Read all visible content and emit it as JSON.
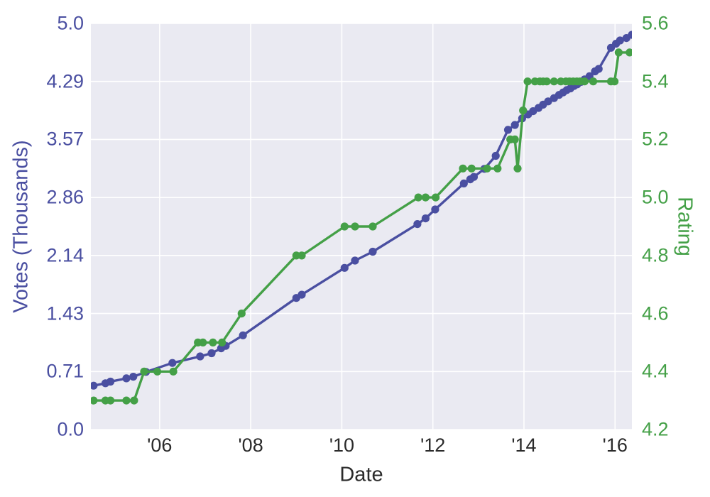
{
  "figure": {
    "left_axis": {
      "label": "Votes (Thousands)",
      "color": "#4a4fa1",
      "ticks": [
        "5.0",
        "4.29",
        "3.57",
        "2.86",
        "2.14",
        "1.43",
        "0.71",
        "0.0"
      ]
    },
    "right_axis": {
      "label": "Rating",
      "color": "#44a047",
      "ticks": [
        "5.6",
        "5.4",
        "5.2",
        "5.0",
        "4.8",
        "4.6",
        "4.4",
        "4.2"
      ]
    },
    "x_axis": {
      "label": "Date",
      "color": "#2b2b2b",
      "ticks": [
        "'06",
        "'08",
        "'10",
        "'12",
        "'14",
        "'16"
      ],
      "tick_years": [
        2006,
        2008,
        2010,
        2012,
        2014,
        2016
      ]
    }
  },
  "chart_data": {
    "type": "line",
    "title": "",
    "xlabel": "Date",
    "x_range": [
      2004.49,
      2016.37
    ],
    "grid": true,
    "legend": "none",
    "plot_background": "#eaeaf2",
    "gridline_color": "#ffffff",
    "marker": "circle",
    "series": [
      {
        "name": "Votes (Thousands)",
        "axis": "left",
        "color": "#4a4fa1",
        "ylim": [
          0.0,
          5.0
        ],
        "yticks": [
          0.0,
          0.71,
          1.43,
          2.14,
          2.86,
          3.57,
          4.29,
          5.0
        ],
        "points": [
          [
            2004.55,
            0.54
          ],
          [
            2004.81,
            0.57
          ],
          [
            2004.92,
            0.59
          ],
          [
            2005.27,
            0.63
          ],
          [
            2005.42,
            0.65
          ],
          [
            2005.7,
            0.71
          ],
          [
            2006.28,
            0.82
          ],
          [
            2006.89,
            0.9
          ],
          [
            2007.14,
            0.94
          ],
          [
            2007.35,
            1.0
          ],
          [
            2007.45,
            1.03
          ],
          [
            2007.83,
            1.16
          ],
          [
            2009.0,
            1.62
          ],
          [
            2009.12,
            1.66
          ],
          [
            2010.06,
            1.99
          ],
          [
            2010.29,
            2.08
          ],
          [
            2010.68,
            2.19
          ],
          [
            2011.66,
            2.53
          ],
          [
            2011.84,
            2.6
          ],
          [
            2012.05,
            2.71
          ],
          [
            2012.68,
            3.03
          ],
          [
            2012.82,
            3.08
          ],
          [
            2012.9,
            3.11
          ],
          [
            2013.13,
            3.21
          ],
          [
            2013.38,
            3.37
          ],
          [
            2013.65,
            3.69
          ],
          [
            2013.8,
            3.75
          ],
          [
            2013.96,
            3.83
          ],
          [
            2014.09,
            3.88
          ],
          [
            2014.2,
            3.92
          ],
          [
            2014.32,
            3.96
          ],
          [
            2014.42,
            4.0
          ],
          [
            2014.53,
            4.04
          ],
          [
            2014.66,
            4.08
          ],
          [
            2014.77,
            4.12
          ],
          [
            2014.86,
            4.15
          ],
          [
            2014.94,
            4.18
          ],
          [
            2015.02,
            4.2
          ],
          [
            2015.1,
            4.23
          ],
          [
            2015.17,
            4.25
          ],
          [
            2015.25,
            4.28
          ],
          [
            2015.33,
            4.31
          ],
          [
            2015.44,
            4.35
          ],
          [
            2015.56,
            4.41
          ],
          [
            2015.64,
            4.44
          ],
          [
            2015.91,
            4.7
          ],
          [
            2016.02,
            4.75
          ],
          [
            2016.11,
            4.79
          ],
          [
            2016.25,
            4.82
          ],
          [
            2016.37,
            4.86
          ]
        ]
      },
      {
        "name": "Rating",
        "axis": "right",
        "color": "#44a047",
        "ylim": [
          4.2,
          5.6
        ],
        "yticks": [
          4.2,
          4.4,
          4.6,
          4.8,
          5.0,
          5.2,
          5.4,
          5.6
        ],
        "points": [
          [
            2004.55,
            4.3
          ],
          [
            2004.81,
            4.3
          ],
          [
            2004.92,
            4.3
          ],
          [
            2005.27,
            4.3
          ],
          [
            2005.44,
            4.3
          ],
          [
            2005.66,
            4.4
          ],
          [
            2005.95,
            4.4
          ],
          [
            2006.3,
            4.4
          ],
          [
            2006.84,
            4.5
          ],
          [
            2006.95,
            4.5
          ],
          [
            2007.17,
            4.5
          ],
          [
            2007.37,
            4.5
          ],
          [
            2007.8,
            4.6
          ],
          [
            2009.0,
            4.8
          ],
          [
            2009.12,
            4.8
          ],
          [
            2010.06,
            4.9
          ],
          [
            2010.29,
            4.9
          ],
          [
            2010.68,
            4.9
          ],
          [
            2011.68,
            5.0
          ],
          [
            2011.84,
            5.0
          ],
          [
            2012.06,
            5.0
          ],
          [
            2012.66,
            5.1
          ],
          [
            2012.85,
            5.1
          ],
          [
            2013.19,
            5.1
          ],
          [
            2013.42,
            5.1
          ],
          [
            2013.7,
            5.2
          ],
          [
            2013.8,
            5.2
          ],
          [
            2013.86,
            5.1
          ],
          [
            2013.98,
            5.3
          ],
          [
            2014.08,
            5.4
          ],
          [
            2014.24,
            5.4
          ],
          [
            2014.35,
            5.4
          ],
          [
            2014.42,
            5.4
          ],
          [
            2014.5,
            5.4
          ],
          [
            2014.66,
            5.4
          ],
          [
            2014.81,
            5.4
          ],
          [
            2014.92,
            5.4
          ],
          [
            2015.0,
            5.4
          ],
          [
            2015.08,
            5.4
          ],
          [
            2015.16,
            5.4
          ],
          [
            2015.23,
            5.4
          ],
          [
            2015.33,
            5.4
          ],
          [
            2015.52,
            5.4
          ],
          [
            2015.91,
            5.4
          ],
          [
            2015.99,
            5.4
          ],
          [
            2016.08,
            5.5
          ],
          [
            2016.32,
            5.5
          ]
        ]
      }
    ]
  }
}
